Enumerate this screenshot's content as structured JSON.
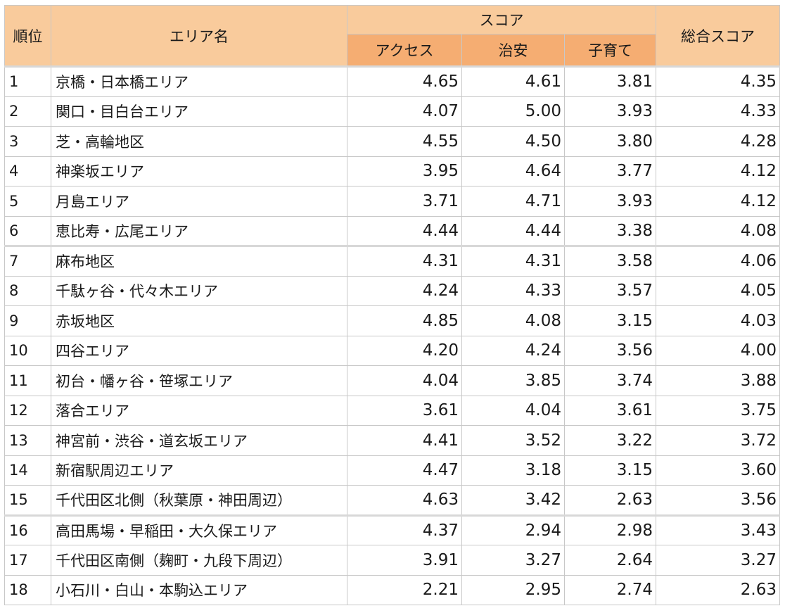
{
  "headers": {
    "rank": "順位",
    "area": "エリア名",
    "score_group": "スコア",
    "access": "アクセス",
    "safety": "治安",
    "childcare": "子育て",
    "total": "総合スコア"
  },
  "rows": [
    {
      "rank": "1",
      "area": "京橋・日本橋エリア",
      "access": "4.65",
      "safety": "4.61",
      "childcare": "3.81",
      "total": "4.35"
    },
    {
      "rank": "2",
      "area": "関口・目白台エリア",
      "access": "4.07",
      "safety": "5.00",
      "childcare": "3.93",
      "total": "4.33"
    },
    {
      "rank": "3",
      "area": "芝・高輪地区",
      "access": "4.55",
      "safety": "4.50",
      "childcare": "3.80",
      "total": "4.28"
    },
    {
      "rank": "4",
      "area": "神楽坂エリア",
      "access": "3.95",
      "safety": "4.64",
      "childcare": "3.77",
      "total": "4.12"
    },
    {
      "rank": "5",
      "area": "月島エリア",
      "access": "3.71",
      "safety": "4.71",
      "childcare": "3.93",
      "total": "4.12"
    },
    {
      "rank": "6",
      "area": "恵比寿・広尾エリア",
      "access": "4.44",
      "safety": "4.44",
      "childcare": "3.38",
      "total": "4.08"
    },
    {
      "rank": "7",
      "area": "麻布地区",
      "access": "4.31",
      "safety": "4.31",
      "childcare": "3.58",
      "total": "4.06"
    },
    {
      "rank": "8",
      "area": "千駄ヶ谷・代々木エリア",
      "access": "4.24",
      "safety": "4.33",
      "childcare": "3.57",
      "total": "4.05"
    },
    {
      "rank": "9",
      "area": "赤坂地区",
      "access": "4.85",
      "safety": "4.08",
      "childcare": "3.15",
      "total": "4.03"
    },
    {
      "rank": "10",
      "area": "四谷エリア",
      "access": "4.20",
      "safety": "4.24",
      "childcare": "3.56",
      "total": "4.00"
    },
    {
      "rank": "11",
      "area": "初台・幡ヶ谷・笹塚エリア",
      "access": "4.04",
      "safety": "3.85",
      "childcare": "3.74",
      "total": "3.88"
    },
    {
      "rank": "12",
      "area": "落合エリア",
      "access": "3.61",
      "safety": "4.04",
      "childcare": "3.61",
      "total": "3.75"
    },
    {
      "rank": "13",
      "area": "神宮前・渋谷・道玄坂エリア",
      "access": "4.41",
      "safety": "3.52",
      "childcare": "3.22",
      "total": "3.72"
    },
    {
      "rank": "14",
      "area": "新宿駅周辺エリア",
      "access": "4.47",
      "safety": "3.18",
      "childcare": "3.15",
      "total": "3.60"
    },
    {
      "rank": "15",
      "area": "千代田区北側（秋葉原・神田周辺）",
      "access": "4.63",
      "safety": "3.42",
      "childcare": "2.63",
      "total": "3.56"
    },
    {
      "rank": "16",
      "area": "高田馬場・早稲田・大久保エリア",
      "access": "4.37",
      "safety": "2.94",
      "childcare": "2.98",
      "total": "3.43"
    },
    {
      "rank": "17",
      "area": "千代田区南側（麹町・九段下周辺）",
      "access": "3.91",
      "safety": "3.27",
      "childcare": "2.64",
      "total": "3.27"
    },
    {
      "rank": "18",
      "area": "小石川・白山・本駒込エリア",
      "access": "2.21",
      "safety": "2.95",
      "childcare": "2.74",
      "total": "2.63"
    }
  ]
}
